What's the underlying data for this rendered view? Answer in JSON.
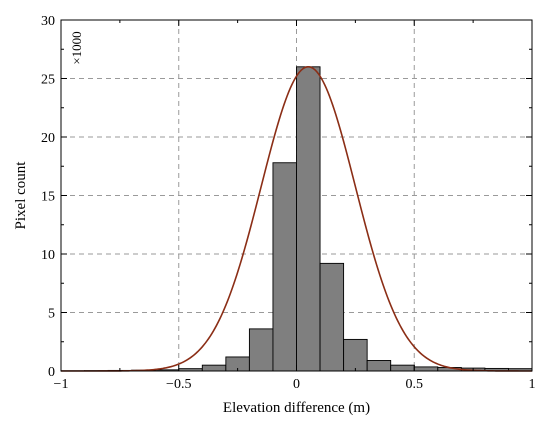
{
  "chart_data": {
    "type": "bar",
    "xlabel": "Elevation difference (m)",
    "ylabel": "Pixel count",
    "y_multiplier_label": "×1000",
    "xlim": [
      -1,
      1
    ],
    "ylim": [
      0,
      30
    ],
    "grid": true,
    "x_ticks": [
      {
        "value": -1,
        "label": "−1"
      },
      {
        "value": -0.5,
        "label": "−0.5"
      },
      {
        "value": 0,
        "label": "0"
      },
      {
        "value": 0.5,
        "label": "0.5"
      },
      {
        "value": 1,
        "label": "1"
      }
    ],
    "y_ticks": [
      {
        "value": 0,
        "label": "0"
      },
      {
        "value": 5,
        "label": "5"
      },
      {
        "value": 10,
        "label": "10"
      },
      {
        "value": 15,
        "label": "15"
      },
      {
        "value": 20,
        "label": "20"
      },
      {
        "value": 25,
        "label": "25"
      },
      {
        "value": 30,
        "label": "30"
      }
    ],
    "histogram": {
      "bin_width": 0.1,
      "bin_starts": [
        -1.0,
        -0.9,
        -0.8,
        -0.7,
        -0.6,
        -0.5,
        -0.4,
        -0.3,
        -0.2,
        -0.1,
        0.0,
        0.1,
        0.2,
        0.3,
        0.4,
        0.5,
        0.6,
        0.7,
        0.8,
        0.9
      ],
      "values": [
        0.02,
        0.03,
        0.05,
        0.07,
        0.1,
        0.2,
        0.5,
        1.2,
        3.6,
        17.8,
        26.0,
        9.2,
        2.7,
        0.9,
        0.5,
        0.35,
        0.3,
        0.25,
        0.22,
        0.2
      ],
      "bar_color": "#7f7f7f",
      "edge_color": "#000000"
    },
    "fit_curve": {
      "type": "gaussian",
      "peak": 26.0,
      "mean": 0.05,
      "sigma": 0.2,
      "color": "#8b2e16"
    }
  }
}
